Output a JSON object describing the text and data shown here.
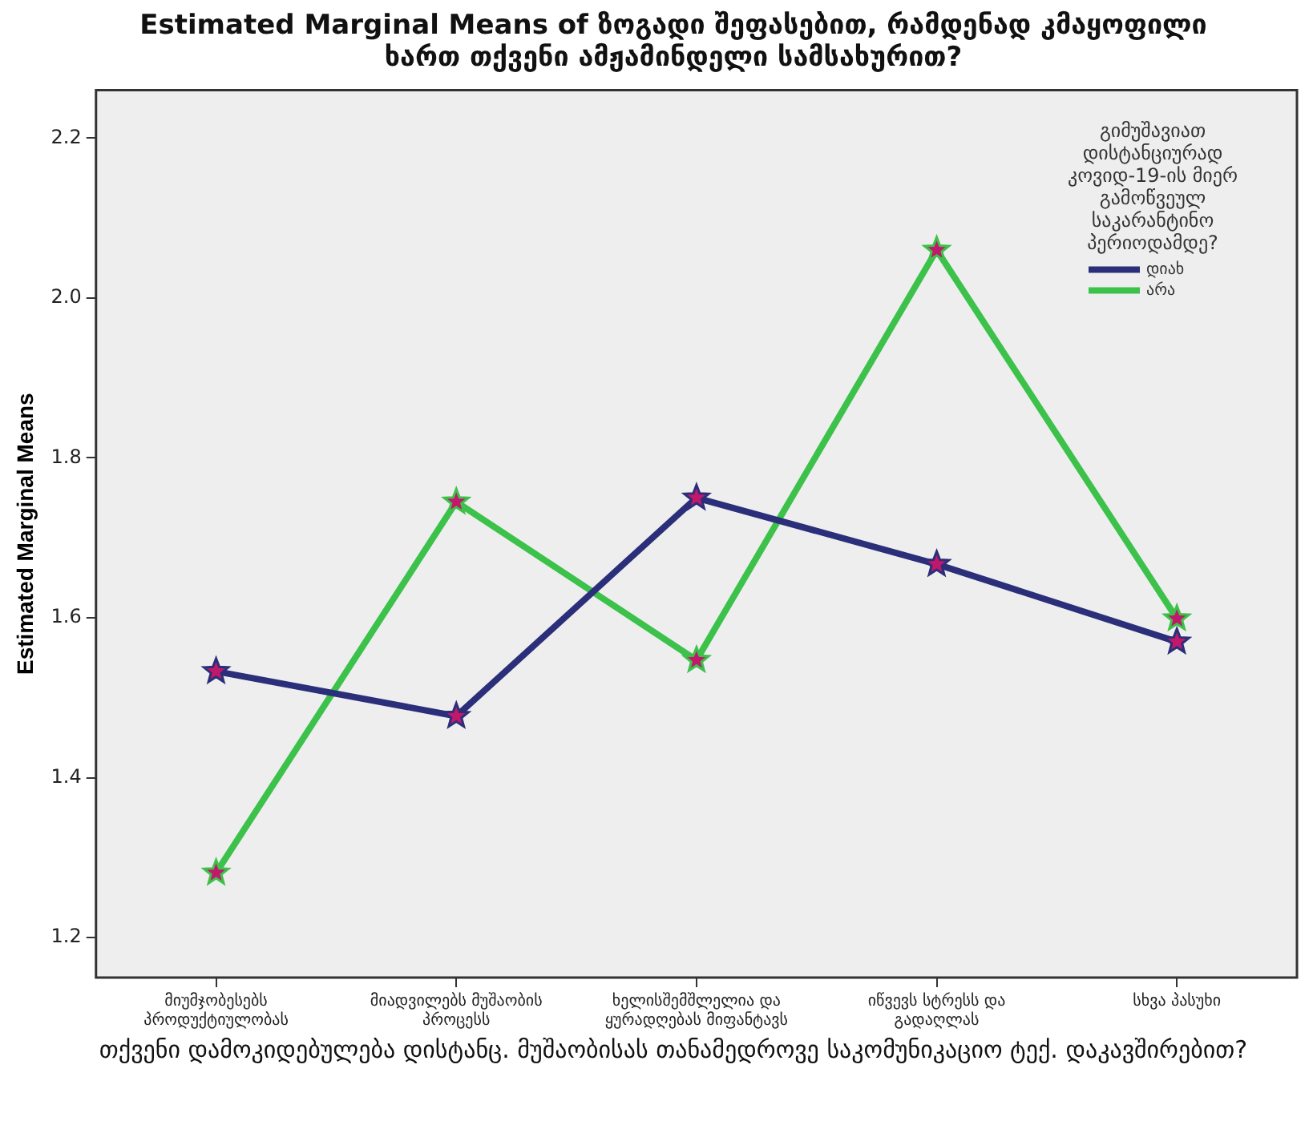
{
  "chart_data": {
    "type": "line",
    "title": "Estimated Marginal Means of ზოგადი შეფასებით, რამდენად კმაყოფილი ხართ თქვენი ამჟამინდელი სამსახურით?",
    "xlabel": "თქვენი დამოკიდებულება დისტანც. მუშაობისას თანამედროვე საკომუნიკაციო ტექ. დაკავშირებით?",
    "ylabel": "Estimated Marginal Means",
    "legend_title": "გიმუშავიათ დისტანციურად კოვიდ-19-ის მიერ გამოწვეულ საკარანტინო პერიოდამდე?",
    "categories": [
      "მიუმჯობესებს პროდუქტიულობას",
      "მიადვილებს მუშაობის პროცესს",
      "ხელისშემშლელია და ყურადღებას მიფანტავს",
      "იწვევს სტრესს და გადაღლას",
      "სხვა პასუხი"
    ],
    "series": [
      {
        "name": "დიახ",
        "color": "#2b2f7a",
        "values": [
          1.533,
          1.477,
          1.75,
          1.667,
          1.57
        ]
      },
      {
        "name": "არა",
        "color": "#3cc24a",
        "values": [
          1.281,
          1.745,
          1.547,
          2.06,
          1.599
        ]
      }
    ],
    "ylim": [
      1.15,
      2.26
    ],
    "yticks": [
      1.2,
      1.4,
      1.6,
      1.8,
      {
        "value": 2,
        "label": "2.0"
      },
      2.2
    ],
    "grid": false,
    "legend": "top right",
    "marker": "star",
    "line_style": "solid"
  }
}
